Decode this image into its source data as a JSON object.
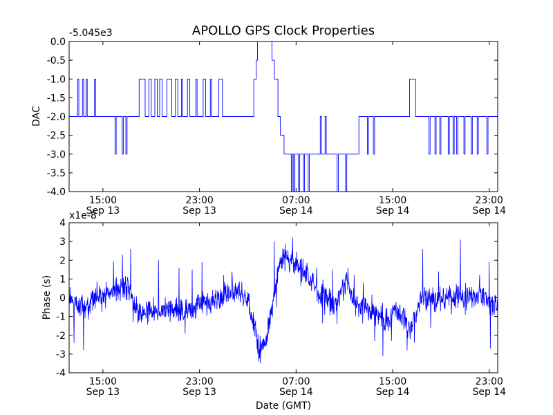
{
  "figure": {
    "title": "APOLLO GPS Clock Properties",
    "xlabel": "Date (GMT)",
    "trace_color": "#0000ff"
  },
  "x_ticks": [
    {
      "t": 15,
      "top": "15:00",
      "bottom": "Sep 13"
    },
    {
      "t": 23,
      "top": "23:00",
      "bottom": "Sep 13"
    },
    {
      "t": 31,
      "top": "07:00",
      "bottom": "Sep 14"
    },
    {
      "t": 39,
      "top": "15:00",
      "bottom": "Sep 14"
    },
    {
      "t": 47,
      "top": "23:00",
      "bottom": "Sep 14"
    }
  ],
  "chart_data": [
    {
      "type": "line",
      "ylabel": "DAC",
      "offset_label": "-5.045e3",
      "xlim": [
        12.2,
        47.7
      ],
      "ylim": [
        -4.0,
        0.0
      ],
      "yticks": [
        "-4.0",
        "-3.5",
        "-3.0",
        "-2.5",
        "-2.0",
        "-1.5",
        "-1.0",
        "-0.5",
        "0.0"
      ],
      "series": [
        {
          "style": "step",
          "points": [
            [
              12.2,
              -2.0
            ],
            [
              12.9,
              -1.0
            ],
            [
              13.0,
              -2.0
            ],
            [
              13.3,
              -1.0
            ],
            [
              13.4,
              -2.0
            ],
            [
              13.6,
              -1.0
            ],
            [
              13.7,
              -2.0
            ],
            [
              14.3,
              -1.0
            ],
            [
              14.4,
              -2.0
            ],
            [
              16.0,
              -3.0
            ],
            [
              16.1,
              -2.0
            ],
            [
              16.6,
              -3.0
            ],
            [
              16.7,
              -2.0
            ],
            [
              16.9,
              -3.0
            ],
            [
              17.0,
              -2.0
            ],
            [
              18.0,
              -1.0
            ],
            [
              18.5,
              -2.0
            ],
            [
              18.8,
              -1.0
            ],
            [
              19.0,
              -2.0
            ],
            [
              19.3,
              -1.0
            ],
            [
              19.5,
              -2.0
            ],
            [
              19.7,
              -1.0
            ],
            [
              19.9,
              -2.0
            ],
            [
              20.3,
              -1.0
            ],
            [
              20.7,
              -2.0
            ],
            [
              21.0,
              -1.0
            ],
            [
              21.2,
              -2.0
            ],
            [
              21.5,
              -1.0
            ],
            [
              21.6,
              -2.0
            ],
            [
              22.0,
              -1.0
            ],
            [
              22.2,
              -2.0
            ],
            [
              22.7,
              -1.0
            ],
            [
              22.8,
              -2.0
            ],
            [
              23.3,
              -1.0
            ],
            [
              23.5,
              -2.0
            ],
            [
              23.9,
              -1.0
            ],
            [
              24.0,
              -2.0
            ],
            [
              24.6,
              -1.0
            ],
            [
              24.9,
              -2.0
            ],
            [
              27.5,
              -1.0
            ],
            [
              27.7,
              -0.5
            ],
            [
              27.8,
              0.0
            ],
            [
              29.0,
              -0.5
            ],
            [
              29.2,
              -1.0
            ],
            [
              29.5,
              -2.0
            ],
            [
              29.7,
              -2.5
            ],
            [
              30.0,
              -3.0
            ],
            [
              30.6,
              -4.0
            ],
            [
              30.7,
              -3.0
            ],
            [
              30.8,
              -4.0
            ],
            [
              30.9,
              -3.0
            ],
            [
              31.2,
              -4.0
            ],
            [
              31.3,
              -3.0
            ],
            [
              31.6,
              -4.0
            ],
            [
              31.7,
              -3.0
            ],
            [
              32.0,
              -4.0
            ],
            [
              32.1,
              -3.0
            ],
            [
              33.0,
              -2.0
            ],
            [
              33.1,
              -3.0
            ],
            [
              33.4,
              -2.0
            ],
            [
              33.5,
              -3.0
            ],
            [
              34.4,
              -4.0
            ],
            [
              34.5,
              -3.0
            ],
            [
              35.1,
              -4.0
            ],
            [
              35.2,
              -3.0
            ],
            [
              36.2,
              -2.0
            ],
            [
              36.9,
              -3.0
            ],
            [
              37.0,
              -2.0
            ],
            [
              37.4,
              -3.0
            ],
            [
              37.5,
              -2.0
            ],
            [
              40.4,
              -1.0
            ],
            [
              40.9,
              -2.0
            ],
            [
              42.0,
              -3.0
            ],
            [
              42.1,
              -2.0
            ],
            [
              42.5,
              -3.0
            ],
            [
              42.6,
              -2.0
            ],
            [
              42.9,
              -3.0
            ],
            [
              43.0,
              -2.0
            ],
            [
              43.6,
              -3.0
            ],
            [
              43.7,
              -2.0
            ],
            [
              44.0,
              -3.0
            ],
            [
              44.1,
              -2.0
            ],
            [
              44.3,
              -3.0
            ],
            [
              44.4,
              -2.0
            ],
            [
              44.9,
              -3.0
            ],
            [
              45.0,
              -2.0
            ],
            [
              45.5,
              -3.0
            ],
            [
              45.6,
              -2.0
            ],
            [
              46.0,
              -3.0
            ],
            [
              46.1,
              -2.0
            ],
            [
              46.8,
              -3.0
            ],
            [
              46.9,
              -2.0
            ],
            [
              47.7,
              -2.0
            ]
          ]
        }
      ]
    },
    {
      "type": "line",
      "ylabel": "Phase (s)",
      "offset_label": "x1e-8",
      "xlim": [
        12.2,
        47.7
      ],
      "ylim": [
        -4,
        4
      ],
      "yticks": [
        "-4",
        "-3",
        "-2",
        "-1",
        "0",
        "1",
        "2",
        "3",
        "4"
      ],
      "series": [
        {
          "style": "noisy-trace",
          "noise_amplitude": 0.55,
          "seed": 7,
          "baseline": [
            [
              12.2,
              -0.2
            ],
            [
              13.5,
              -0.5
            ],
            [
              14.5,
              0.0
            ],
            [
              15.5,
              0.2
            ],
            [
              16.5,
              0.5
            ],
            [
              17.0,
              0.6
            ],
            [
              17.8,
              -0.7
            ],
            [
              19.0,
              -0.8
            ],
            [
              20.5,
              -0.6
            ],
            [
              22.0,
              -0.7
            ],
            [
              23.0,
              -0.4
            ],
            [
              24.5,
              0.0
            ],
            [
              25.5,
              0.3
            ],
            [
              26.5,
              0.3
            ],
            [
              27.0,
              -0.2
            ],
            [
              27.6,
              -1.6
            ],
            [
              28.0,
              -2.8
            ],
            [
              28.4,
              -2.6
            ],
            [
              28.8,
              -1.2
            ],
            [
              29.3,
              0.5
            ],
            [
              29.6,
              1.8
            ],
            [
              30.2,
              2.1
            ],
            [
              31.0,
              1.9
            ],
            [
              31.8,
              1.2
            ],
            [
              32.5,
              0.6
            ],
            [
              33.2,
              0.2
            ],
            [
              34.0,
              -0.3
            ],
            [
              34.6,
              0.1
            ],
            [
              35.2,
              0.9
            ],
            [
              35.8,
              -0.3
            ],
            [
              36.5,
              -0.5
            ],
            [
              37.2,
              -0.8
            ],
            [
              38.0,
              -1.0
            ],
            [
              38.7,
              -1.3
            ],
            [
              39.2,
              -0.6
            ],
            [
              39.8,
              -1.0
            ],
            [
              40.4,
              -1.6
            ],
            [
              40.9,
              -1.0
            ],
            [
              41.3,
              0.0
            ],
            [
              42.5,
              -0.2
            ],
            [
              43.5,
              0.0
            ],
            [
              44.5,
              0.0
            ],
            [
              45.5,
              0.1
            ],
            [
              46.5,
              0.0
            ],
            [
              47.7,
              -0.6
            ]
          ],
          "spikes": [
            [
              12.6,
              -2.4
            ],
            [
              13.4,
              -2.8
            ],
            [
              16.6,
              2.3
            ],
            [
              17.3,
              2.6
            ],
            [
              17.5,
              -1.3
            ],
            [
              19.6,
              2.0
            ],
            [
              21.3,
              1.6
            ],
            [
              22.4,
              1.5
            ],
            [
              23.2,
              1.9
            ],
            [
              25.0,
              1.2
            ],
            [
              25.7,
              1.4
            ],
            [
              27.9,
              -3.4
            ],
            [
              29.2,
              3.0
            ],
            [
              30.0,
              2.6
            ],
            [
              31.1,
              1.9
            ],
            [
              32.0,
              1.4
            ],
            [
              34.0,
              1.5
            ],
            [
              34.4,
              -1.4
            ],
            [
              35.3,
              1.6
            ],
            [
              35.8,
              1.2
            ],
            [
              37.5,
              -2.3
            ],
            [
              38.2,
              -3.1
            ],
            [
              38.9,
              -2.3
            ],
            [
              40.2,
              -2.8
            ],
            [
              40.8,
              -2.4
            ],
            [
              41.5,
              2.6
            ],
            [
              42.8,
              1.4
            ],
            [
              44.6,
              3.1
            ],
            [
              45.0,
              -0.9
            ],
            [
              46.2,
              1.2
            ],
            [
              47.0,
              1.9
            ],
            [
              47.1,
              -2.7
            ]
          ]
        }
      ]
    }
  ]
}
